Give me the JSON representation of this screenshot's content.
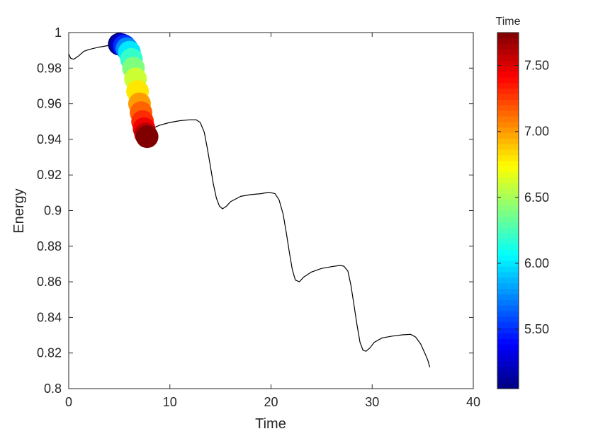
{
  "chart_data": {
    "type": "line",
    "xlabel": "Time",
    "ylabel": "Energy",
    "xlim": [
      0,
      40
    ],
    "ylim": [
      0.8,
      1.0
    ],
    "xticks": [
      0,
      10,
      20,
      30,
      40
    ],
    "xtick_labels": [
      "0",
      "10",
      "20",
      "30",
      "40"
    ],
    "yticks": [
      0.8,
      0.82,
      0.84,
      0.86,
      0.88,
      0.9,
      0.92,
      0.94,
      0.96,
      0.98,
      1.0
    ],
    "ytick_labels": [
      "0.8",
      "0.82",
      "0.84",
      "0.86",
      "0.88",
      "0.9",
      "0.92",
      "0.94",
      "0.96",
      "0.98",
      "1"
    ],
    "grid": false,
    "line_color": "#000000",
    "series": [
      {
        "x": [
          0.0,
          0.2,
          0.5,
          1.0,
          1.5,
          2.0,
          3.0,
          4.0,
          5.0,
          5.6,
          6.0,
          6.3,
          6.6,
          6.9,
          7.2,
          7.5,
          7.7,
          7.9,
          8.2,
          8.6,
          9.0,
          10.0,
          11.0,
          12.0,
          12.6,
          13.0,
          13.4,
          13.7,
          14.0,
          14.3,
          14.6,
          14.9,
          15.2,
          15.6,
          16.0,
          17.0,
          18.0,
          19.0,
          19.8,
          20.4,
          20.8,
          21.2,
          21.5,
          21.8,
          22.1,
          22.4,
          22.8,
          23.2,
          24.0,
          25.0,
          26.0,
          26.8,
          27.2,
          27.6,
          27.9,
          28.2,
          28.5,
          28.8,
          29.1,
          29.4,
          29.8,
          30.2,
          31.0,
          32.0,
          33.0,
          33.8,
          34.3,
          34.8,
          35.2,
          35.5,
          35.7
        ],
        "y": [
          0.988,
          0.9855,
          0.985,
          0.987,
          0.9895,
          0.9905,
          0.9918,
          0.9928,
          0.9933,
          0.993,
          0.991,
          0.985,
          0.975,
          0.962,
          0.951,
          0.945,
          0.9425,
          0.9425,
          0.9455,
          0.947,
          0.948,
          0.9495,
          0.9505,
          0.951,
          0.951,
          0.9495,
          0.944,
          0.935,
          0.925,
          0.915,
          0.907,
          0.9025,
          0.901,
          0.9025,
          0.905,
          0.908,
          0.909,
          0.9095,
          0.9103,
          0.9095,
          0.906,
          0.898,
          0.888,
          0.877,
          0.867,
          0.861,
          0.86,
          0.8625,
          0.8655,
          0.8675,
          0.8685,
          0.8692,
          0.8688,
          0.866,
          0.858,
          0.847,
          0.836,
          0.826,
          0.8215,
          0.821,
          0.823,
          0.826,
          0.8285,
          0.8295,
          0.8302,
          0.8305,
          0.829,
          0.825,
          0.82,
          0.816,
          0.812
        ]
      },
      {
        "type": "scatter",
        "x": [
          5.0,
          5.25,
          5.5,
          5.75,
          6.0,
          6.2,
          6.4,
          6.6,
          6.8,
          7.0,
          7.15,
          7.3,
          7.45,
          7.6,
          7.75
        ],
        "y": [
          0.9935,
          0.9932,
          0.9925,
          0.991,
          0.989,
          0.985,
          0.98,
          0.974,
          0.967,
          0.96,
          0.955,
          0.95,
          0.946,
          0.943,
          0.9415
        ],
        "color_by": "time"
      }
    ],
    "colorbar": {
      "title": "Time",
      "colormap": "jet",
      "range": [
        5.05,
        7.75
      ],
      "ticks": [
        5.5,
        6.0,
        6.5,
        7.0,
        7.5
      ],
      "tick_labels": [
        "5.50",
        "6.00",
        "6.50",
        "7.00",
        "7.50"
      ]
    }
  }
}
